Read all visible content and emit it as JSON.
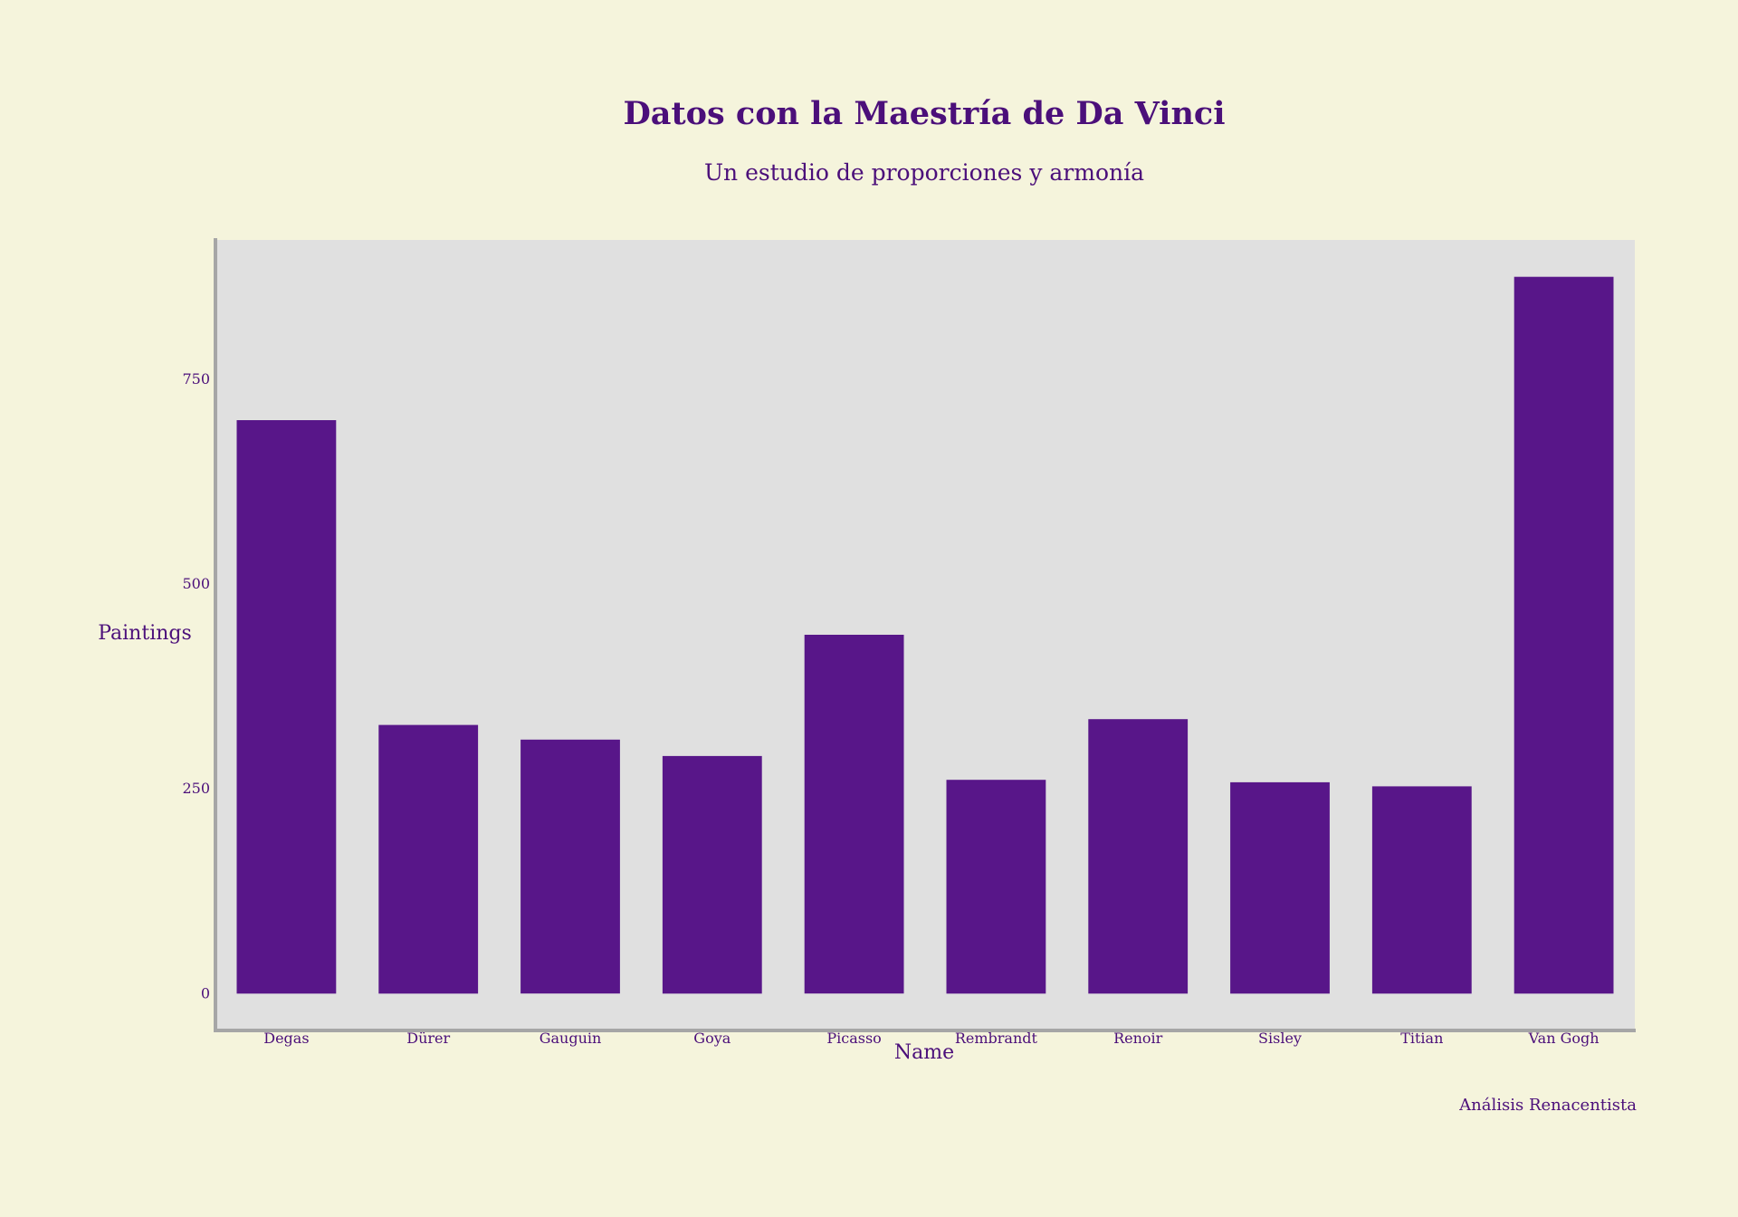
{
  "colors": {
    "background": "#f5f4dc",
    "plot_background": "#e0e0e0",
    "bar": "#581689",
    "text": "#4b0f7a",
    "axis_line": "#a6a6a6"
  },
  "chart_data": {
    "type": "bar",
    "title": "Datos con la Maestría de Da Vinci",
    "subtitle": "Un estudio de proporciones y armonía",
    "xlabel": "Name",
    "ylabel": "Paintings",
    "categories": [
      "Degas",
      "Dürer",
      "Gauguin",
      "Goya",
      "Picasso",
      "Rembrandt",
      "Renoir",
      "Sisley",
      "Titian",
      "Van Gogh"
    ],
    "values": [
      700,
      328,
      310,
      290,
      438,
      261,
      335,
      258,
      253,
      875
    ],
    "yticks": [
      0,
      250,
      500,
      750
    ],
    "ylim": [
      -45,
      920
    ],
    "grid": false,
    "legend": "none",
    "footer": "Análisis Renacentista"
  }
}
